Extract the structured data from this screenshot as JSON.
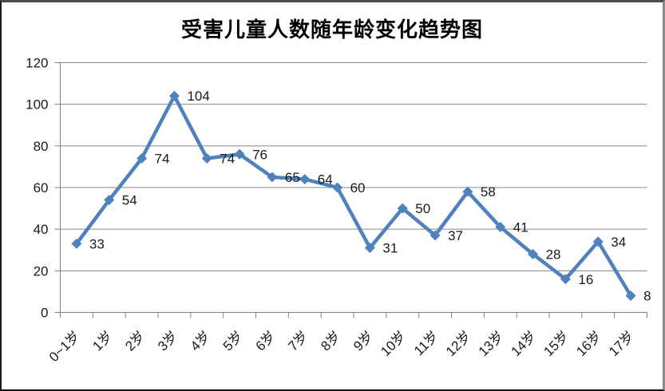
{
  "chart_data": {
    "type": "line",
    "title": "受害儿童人数随年龄变化趋势图",
    "categories": [
      "0~1岁",
      "1岁",
      "2岁",
      "3岁",
      "4岁",
      "5岁",
      "6岁",
      "7岁",
      "8岁",
      "9岁",
      "10岁",
      "11岁",
      "12岁",
      "13岁",
      "14岁",
      "15岁",
      "16岁",
      "17岁"
    ],
    "values": [
      33,
      54,
      74,
      104,
      74,
      76,
      65,
      64,
      60,
      31,
      50,
      37,
      58,
      41,
      28,
      16,
      34,
      8
    ],
    "xlabel": "",
    "ylabel": "",
    "ylim": [
      0,
      120
    ],
    "ytick_step": 20,
    "ytick_labels": [
      "0",
      "20",
      "40",
      "60",
      "80",
      "100",
      "120"
    ],
    "grid": true,
    "legend_position": "none",
    "data_labels_shown": true,
    "marker": "diamond",
    "colors": {
      "line": "#4F81BD",
      "marker": "#4F81BD",
      "gridline": "#878787",
      "axis": "#808080",
      "text": "#1a1a1a",
      "title_text": "#000000",
      "background": "#ffffff"
    }
  }
}
